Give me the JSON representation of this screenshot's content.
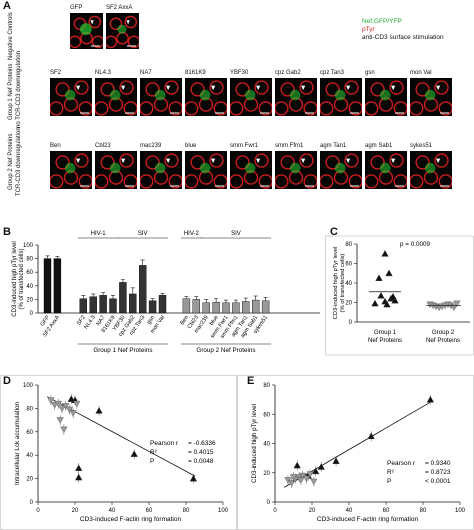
{
  "panel_a": {
    "letter": "A",
    "legend": {
      "nef": "Nef.GFP/YFP",
      "ptyr": "pTyr",
      "cd3": "anti-CD3 surface stimulation",
      "nef_color": "#22cc33",
      "ptyr_color": "#ee2222"
    },
    "rows": [
      {
        "group_label": "Negative Controls",
        "sub_label": "",
        "tiles": [
          "GFP",
          "SF2 AxxA"
        ]
      },
      {
        "group_label": "Group 1 Nef Proteins",
        "sub_label": "no TCR-CD3 downregulation",
        "tiles": [
          "SF2",
          "NL4.3",
          "NA7",
          "8161K9",
          "YBF30",
          "cpz Gab2",
          "cpz Tan3",
          "gsn",
          "mon Val"
        ]
      },
      {
        "group_label": "Group 2 Nef Proteins",
        "sub_label": "TCR-CD3 downregulation",
        "tiles": [
          "Ben",
          "Cbl23",
          "mac239",
          "blue",
          "smm Fwr1",
          "smm Ffm1",
          "agm Tan1",
          "agm Sab1",
          "sykes51"
        ]
      }
    ]
  },
  "panel_b": {
    "letter": "B",
    "group1_headers": [
      "HIV-1",
      "SIV"
    ],
    "group2_headers": [
      "HIV-2",
      "SIV"
    ],
    "group1_caption": "Group 1 Nef Proteins",
    "group2_caption": "Group 2 Nef Proteins"
  },
  "panel_c": {
    "letter": "C",
    "pvalue": "p = 0.0009"
  },
  "panel_d": {
    "letter": "D",
    "stats": [
      "Pearson r",
      "= -0.6336",
      "R²",
      "= 0.4015",
      "P",
      "= 0.0048"
    ]
  },
  "panel_e": {
    "letter": "E",
    "stats": [
      "Pearson r",
      "= 0.9340",
      "R²",
      "= 0.8723",
      "P",
      "< 0.0001"
    ]
  },
  "chart_data": [
    {
      "type": "bar",
      "ylabel": "CD3-induced high pTyr level (% of transfected cells)",
      "ylim": [
        0,
        100
      ],
      "yticks": [
        0,
        20,
        40,
        60,
        80,
        100
      ],
      "categories": [
        "GFP",
        "SF2 AxxA",
        "SF2",
        "NL4.3",
        "NA7",
        "8161K9",
        "YBF30",
        "cpz Gab2",
        "cpz Tan3",
        "gsn",
        "mon Val",
        "Ben",
        "Cbl23",
        "mac239",
        "blue",
        "smm Fwr1",
        "smm Ffm1",
        "agm Tan1",
        "agm Sab1",
        "sykes51"
      ],
      "values": [
        80,
        80,
        21,
        24,
        26,
        21,
        45,
        28,
        70,
        18,
        26,
        21,
        20,
        15,
        16,
        15,
        15,
        17,
        19,
        18
      ],
      "errors": [
        4,
        3,
        5,
        4,
        4,
        5,
        4,
        9,
        8,
        3,
        3,
        3,
        4,
        5,
        5,
        4,
        4,
        5,
        6,
        5
      ],
      "colors": [
        "#111111",
        "#111111",
        "#333333",
        "#333333",
        "#333333",
        "#333333",
        "#333333",
        "#333333",
        "#333333",
        "#333333",
        "#333333",
        "#999999",
        "#999999",
        "#999999",
        "#999999",
        "#999999",
        "#999999",
        "#999999",
        "#999999",
        "#999999"
      ]
    },
    {
      "type": "scatter",
      "ylabel": "CD3-induced high pTyr level (% of transfected cells)",
      "ylim": [
        0,
        80
      ],
      "yticks": [
        0,
        20,
        40,
        60,
        80
      ],
      "categories": [
        "Group 1 Nef Proteins",
        "Group 2 Nef Proteins"
      ],
      "series": [
        {
          "name": "Group 1",
          "marker": "triangle-up",
          "color": "#111111",
          "values": [
            70,
            50,
            45,
            27,
            24,
            22,
            21,
            19,
            18,
            26
          ]
        },
        {
          "name": "Group 2",
          "marker": "triangle-down",
          "color": "#999999",
          "values": [
            18,
            17,
            16,
            15,
            16,
            17,
            18,
            17,
            15,
            19
          ]
        }
      ],
      "mean_lines": [
        31,
        17
      ]
    },
    {
      "type": "scatter",
      "xlabel": "CD3-induced F-actin ring formation",
      "ylabel": "Intracellular Lck accumulation",
      "xlim": [
        0,
        100
      ],
      "ylim": [
        0,
        100
      ],
      "xticks": [
        0,
        20,
        40,
        60,
        80,
        100
      ],
      "yticks": [
        0,
        20,
        40,
        60,
        80,
        100
      ],
      "series": [
        {
          "name": "Group 1",
          "marker": "triangle-up",
          "color": "#111111",
          "points": [
            [
              20,
              87
            ],
            [
              22,
              29
            ],
            [
              22,
              21
            ],
            [
              33,
              78
            ],
            [
              52,
              41
            ],
            [
              84,
              20
            ],
            [
              18,
              88
            ]
          ]
        },
        {
          "name": "Group 2",
          "marker": "triangle-down",
          "color": "#999999",
          "points": [
            [
              7,
              87
            ],
            [
              9,
              83
            ],
            [
              11,
              84
            ],
            [
              13,
              80
            ],
            [
              15,
              82
            ],
            [
              17,
              79
            ],
            [
              19,
              76
            ],
            [
              12,
              70
            ],
            [
              14,
              62
            ],
            [
              21,
              84
            ]
          ]
        }
      ],
      "fit_line": [
        [
          5,
          90
        ],
        [
          85,
          22
        ]
      ]
    },
    {
      "type": "scatter",
      "xlabel": "CD3-induced F-actin ring formation",
      "ylabel": "CD3-induced high pTyr level",
      "xlim": [
        0,
        100
      ],
      "ylim": [
        0,
        80
      ],
      "xticks": [
        0,
        20,
        40,
        60,
        80,
        100
      ],
      "yticks": [
        0,
        20,
        40,
        60,
        80
      ],
      "series": [
        {
          "name": "Group 1",
          "marker": "triangle-up",
          "color": "#111111",
          "points": [
            [
              12,
              25
            ],
            [
              22,
              21
            ],
            [
              18,
              18
            ],
            [
              33,
              28
            ],
            [
              52,
              45
            ],
            [
              84,
              70
            ],
            [
              25,
              24
            ]
          ]
        },
        {
          "name": "Group 2",
          "marker": "triangle-down",
          "color": "#999999",
          "points": [
            [
              7,
              15
            ],
            [
              9,
              13
            ],
            [
              11,
              16
            ],
            [
              13,
              17
            ],
            [
              15,
              18
            ],
            [
              17,
              16
            ],
            [
              19,
              19
            ],
            [
              21,
              14
            ],
            [
              14,
              15
            ],
            [
              10,
              17
            ]
          ]
        }
      ],
      "fit_line": [
        [
          5,
          10
        ],
        [
          85,
          69
        ]
      ]
    }
  ]
}
